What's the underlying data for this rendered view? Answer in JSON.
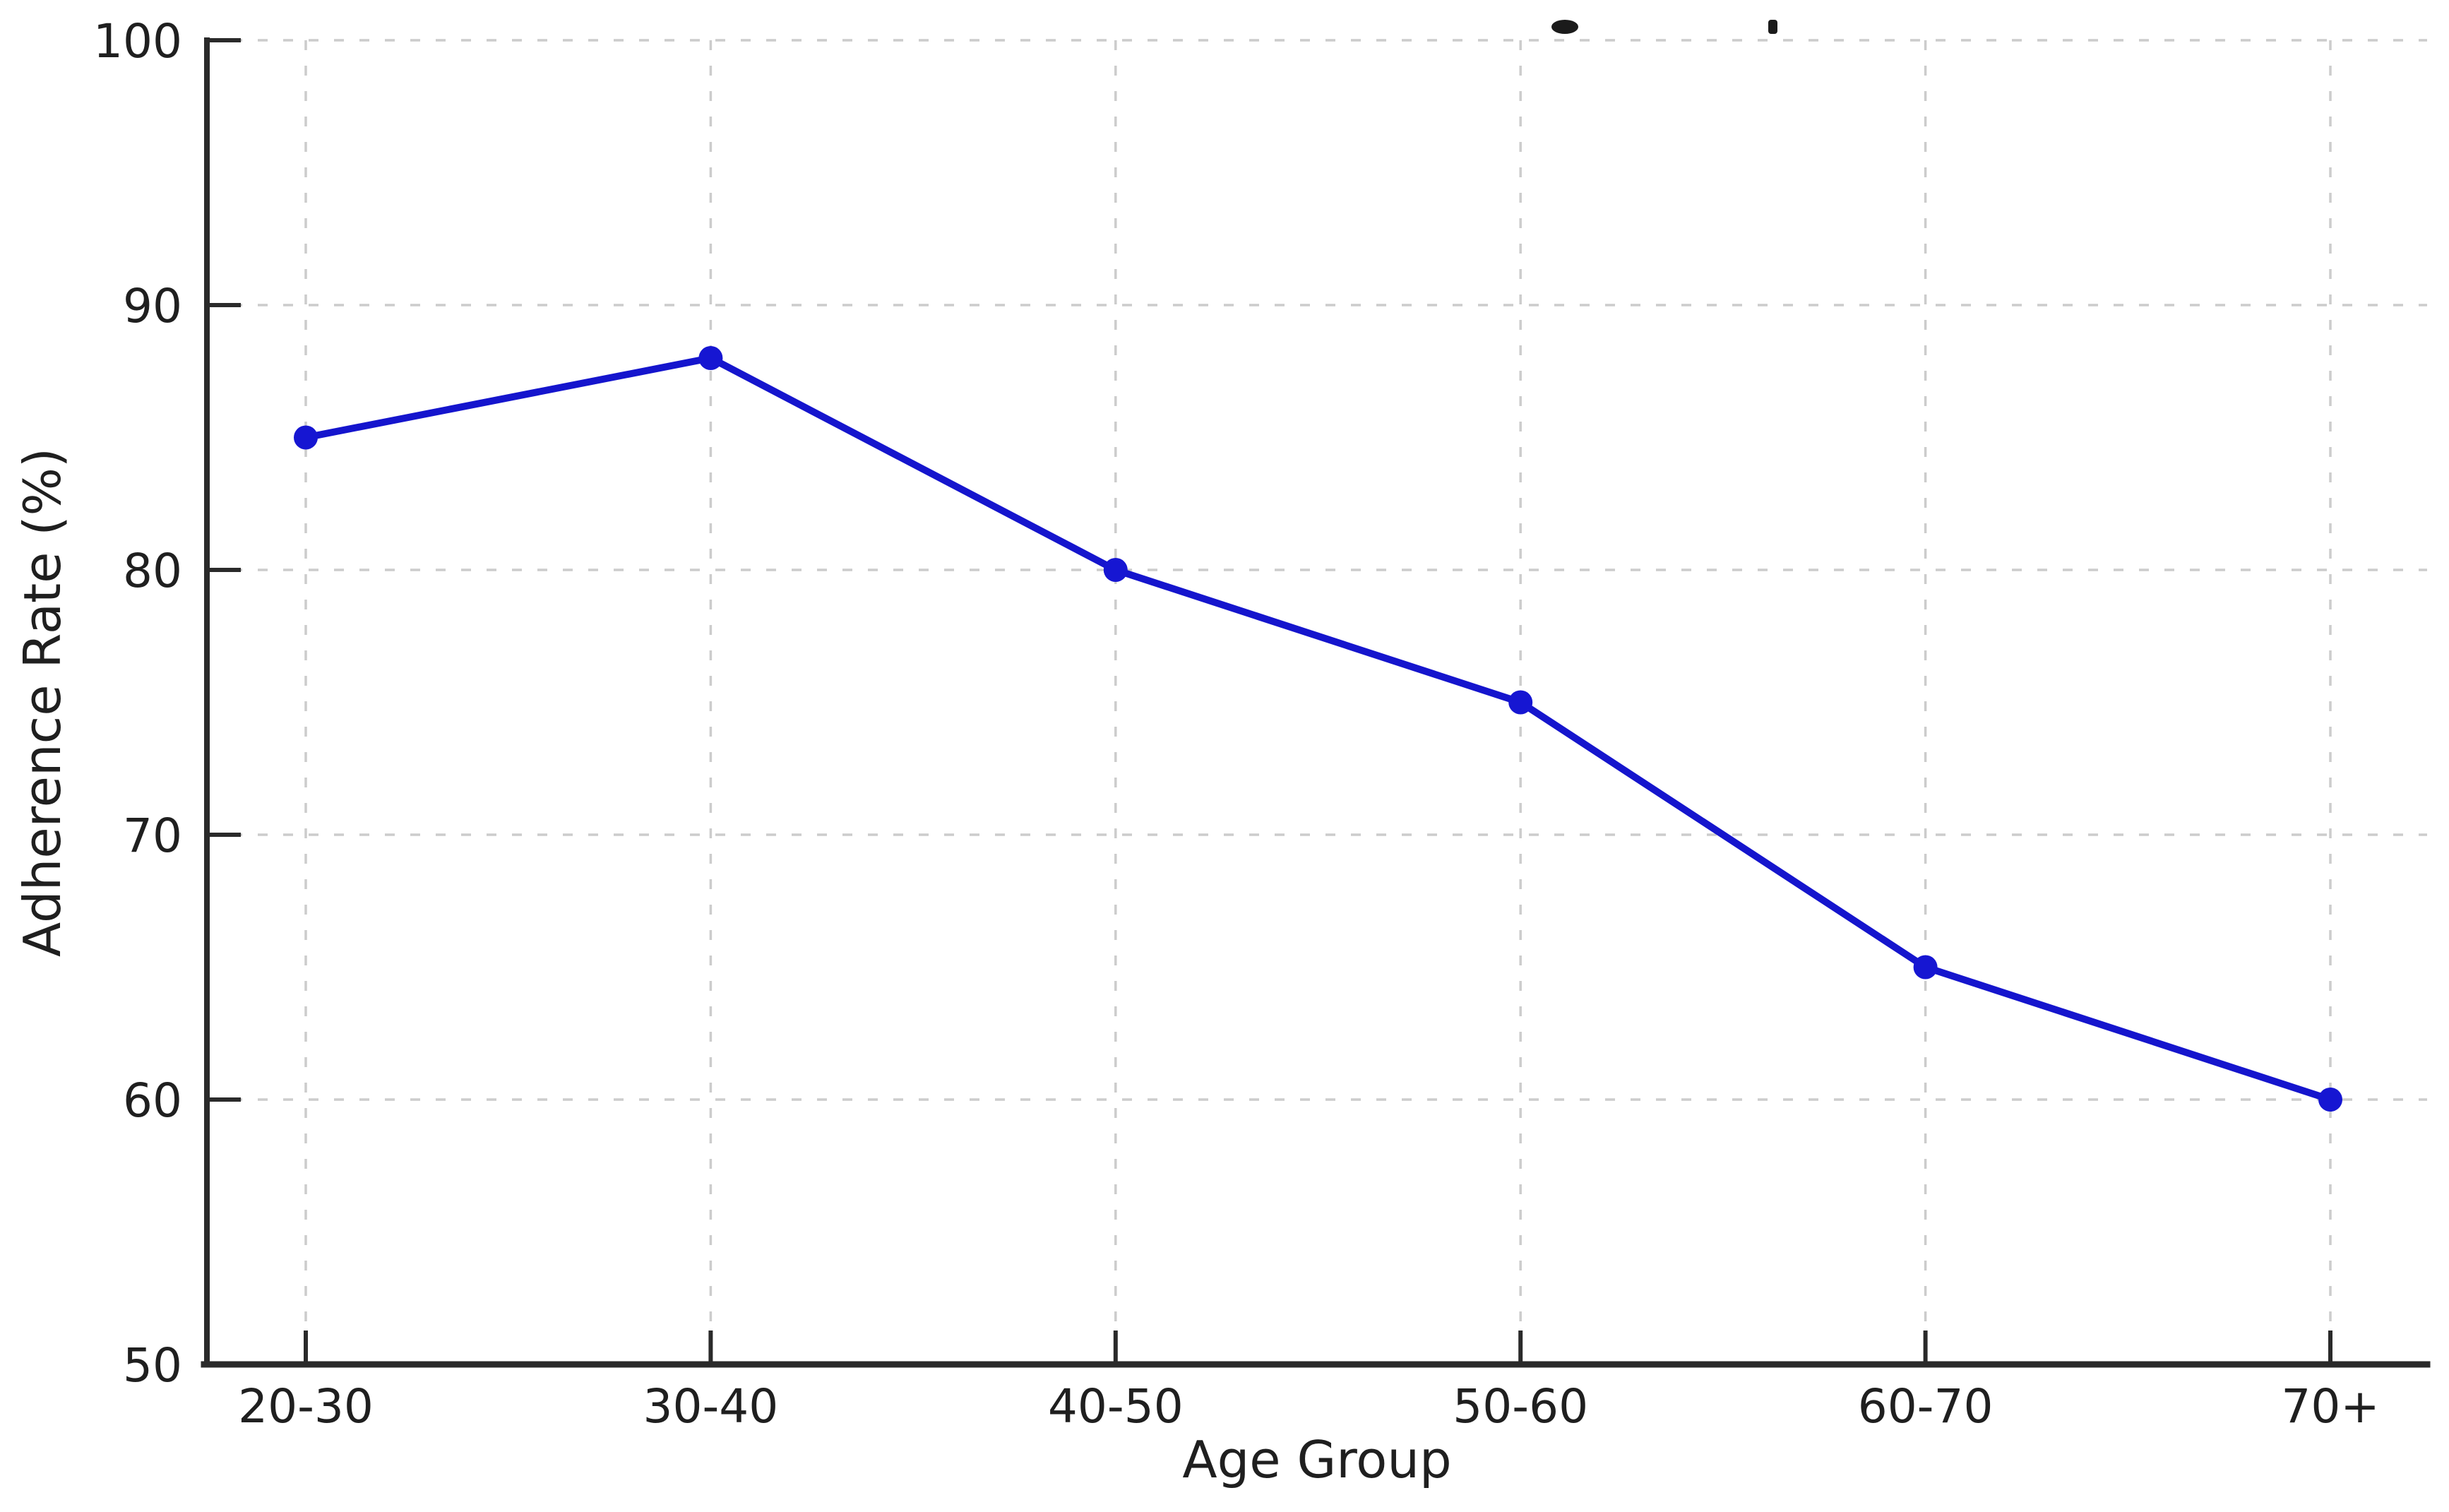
{
  "figure": {
    "background": "#ffffff",
    "layout": {
      "title_cropped": true
    }
  },
  "chart_data": {
    "type": "line",
    "categories": [
      "20-30",
      "30-40",
      "40-50",
      "50-60",
      "60-70",
      "70+"
    ],
    "values": [
      85,
      88,
      80,
      75,
      65,
      60
    ],
    "xlabel": "Age Group",
    "ylabel": "Adherence Rate (%)",
    "ylim": [
      50,
      100
    ],
    "yticks": [
      50,
      60,
      70,
      80,
      90,
      100
    ],
    "grid": "dashed",
    "legend_position": "none",
    "colors": {
      "line": "#1515cd",
      "marker": "#1616d2",
      "grid": "#cccccc",
      "spine": "#2a2a2a",
      "text": "#1f1f1f",
      "title_fragment": "#1b1b1b"
    }
  }
}
